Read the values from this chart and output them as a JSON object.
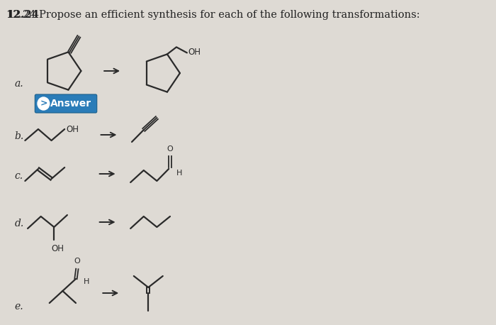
{
  "background_color": "#dedad4",
  "text_color": "#222222",
  "line_color": "#2a2a2a",
  "answer_button_color": "#2a7cb8",
  "answer_button_text": "Answer",
  "title_bold": "12.24",
  "title_rest": " Propose an efficient synthesis for each of the following transformations:",
  "title_fontsize": 10.5,
  "label_fontsize": 10,
  "chem_lw": 1.6
}
